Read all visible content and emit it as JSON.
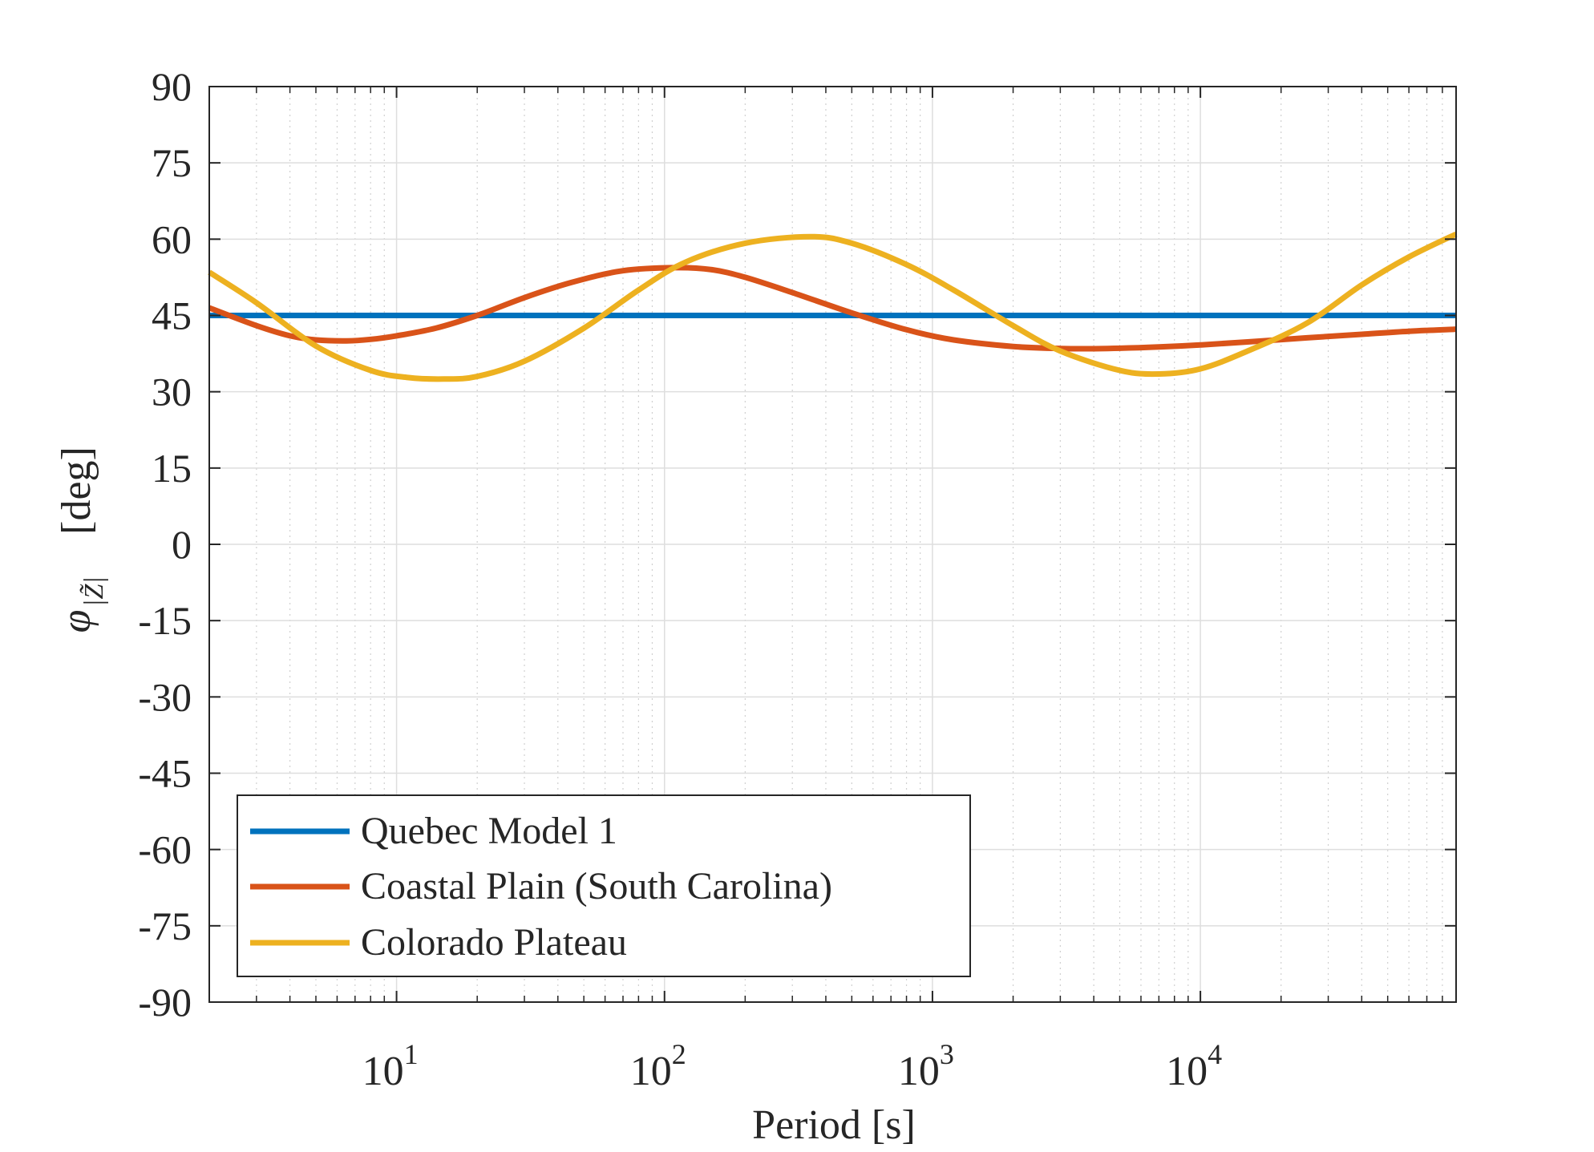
{
  "chart_data": {
    "type": "line",
    "xlabel": "Period [s]",
    "ylabel": "φ",
    "ylabel_subscript": "|Z̃|",
    "ylabel_unit": "[deg]",
    "xscale": "log",
    "xlim": [
      2.0,
      90000
    ],
    "ylim": [
      -90,
      90
    ],
    "yticks": [
      90,
      75,
      60,
      45,
      30,
      15,
      0,
      -15,
      -30,
      -45,
      -60,
      -75,
      -90
    ],
    "xticks": [
      {
        "value": 10,
        "base": "10",
        "exp": "1"
      },
      {
        "value": 100,
        "base": "10",
        "exp": "2"
      },
      {
        "value": 1000,
        "base": "10",
        "exp": "3"
      },
      {
        "value": 10000,
        "base": "10",
        "exp": "4"
      }
    ],
    "grid": true,
    "minor_grid": true,
    "legend_position": "bottom-left",
    "colors": {
      "blue": "#0072BD",
      "orange": "#D95319",
      "yellow": "#EDB120",
      "grid": "#dedede",
      "axis": "#262626"
    },
    "series": [
      {
        "name": "Quebec Model 1",
        "color": "#0072BD",
        "x": [
          2.0,
          90000
        ],
        "y": [
          45,
          45
        ]
      },
      {
        "name": "Coastal Plain (South Carolina)",
        "color": "#D95319",
        "x": [
          2.0,
          3,
          4,
          5,
          6.5,
          8,
          10,
          14,
          20,
          30,
          45,
          70,
          110,
          150,
          200,
          300,
          500,
          800,
          1200,
          2000,
          3000,
          4500,
          7000,
          10000,
          15000,
          25000,
          40000,
          60000,
          90000
        ],
        "y": [
          46.5,
          43,
          41,
          40.2,
          40,
          40.3,
          41,
          42.5,
          45,
          48.5,
          51.5,
          53.8,
          54.4,
          54,
          52.5,
          49.5,
          45.5,
          42.2,
          40.2,
          38.9,
          38.5,
          38.5,
          38.8,
          39.2,
          39.8,
          40.6,
          41.3,
          41.9,
          42.3
        ]
      },
      {
        "name": "Colorado Plateau",
        "color": "#EDB120",
        "x": [
          2.0,
          3,
          5,
          8,
          11,
          15,
          20,
          30,
          50,
          80,
          120,
          200,
          350,
          500,
          800,
          1200,
          2000,
          3000,
          5000,
          7000,
          10000,
          15000,
          25000,
          40000,
          60000,
          90000
        ],
        "y": [
          53.5,
          47.5,
          39,
          34.2,
          32.8,
          32.5,
          33,
          36,
          42.5,
          50,
          55.5,
          59.2,
          60.5,
          59.2,
          55,
          50,
          43,
          38,
          34.2,
          33.5,
          34.5,
          38,
          43.5,
          51,
          56.5,
          61
        ]
      }
    ]
  }
}
